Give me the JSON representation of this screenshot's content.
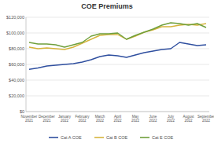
{
  "chart_data": {
    "type": "line",
    "title": "COE Premiums",
    "categories": [
      "November 2021",
      null,
      "December 2021",
      null,
      "January 2022",
      null,
      "February 2022",
      null,
      "March 2022",
      null,
      "April 2022",
      null,
      "May 2022",
      null,
      "June 2022",
      null,
      "July 2022",
      null,
      "August 2022",
      null,
      "September 2022"
    ],
    "series": [
      {
        "name": "Cat A COE",
        "color": "#2f4f9f",
        "values": [
          53700,
          55500,
          58000,
          59000,
          60000,
          61000,
          63000,
          66000,
          70000,
          72000,
          71000,
          69000,
          72000,
          75000,
          77000,
          79000,
          80000,
          88000,
          86000,
          84000,
          85000
        ]
      },
      {
        "name": "Cat B COE",
        "color": "#d6b43c",
        "values": [
          82000,
          80000,
          81000,
          80000,
          79000,
          82000,
          87000,
          92000,
          97000,
          98000,
          98000,
          92000,
          96000,
          101000,
          104000,
          108000,
          108000,
          110000,
          111000,
          110000,
          112000
        ]
      },
      {
        "name": "Cat E COE",
        "color": "#6f9f3b",
        "values": [
          88000,
          86000,
          86000,
          85000,
          82000,
          85000,
          88000,
          96000,
          99000,
          99000,
          100000,
          92000,
          97000,
          101000,
          105000,
          110000,
          113000,
          112000,
          110000,
          112000,
          107000
        ]
      }
    ],
    "ylim": [
      0,
      120000
    ],
    "yticks": [
      {
        "value": 0,
        "label": "$0"
      },
      {
        "value": 20000,
        "label": "$20,000"
      },
      {
        "value": 40000,
        "label": "$40,000"
      },
      {
        "value": 60000,
        "label": "$60,000"
      },
      {
        "value": 80000,
        "label": "$80,000"
      },
      {
        "value": 100000,
        "label": "$100,000"
      },
      {
        "value": 120000,
        "label": "$120,000"
      }
    ],
    "grid": true,
    "legend": "bottom"
  }
}
